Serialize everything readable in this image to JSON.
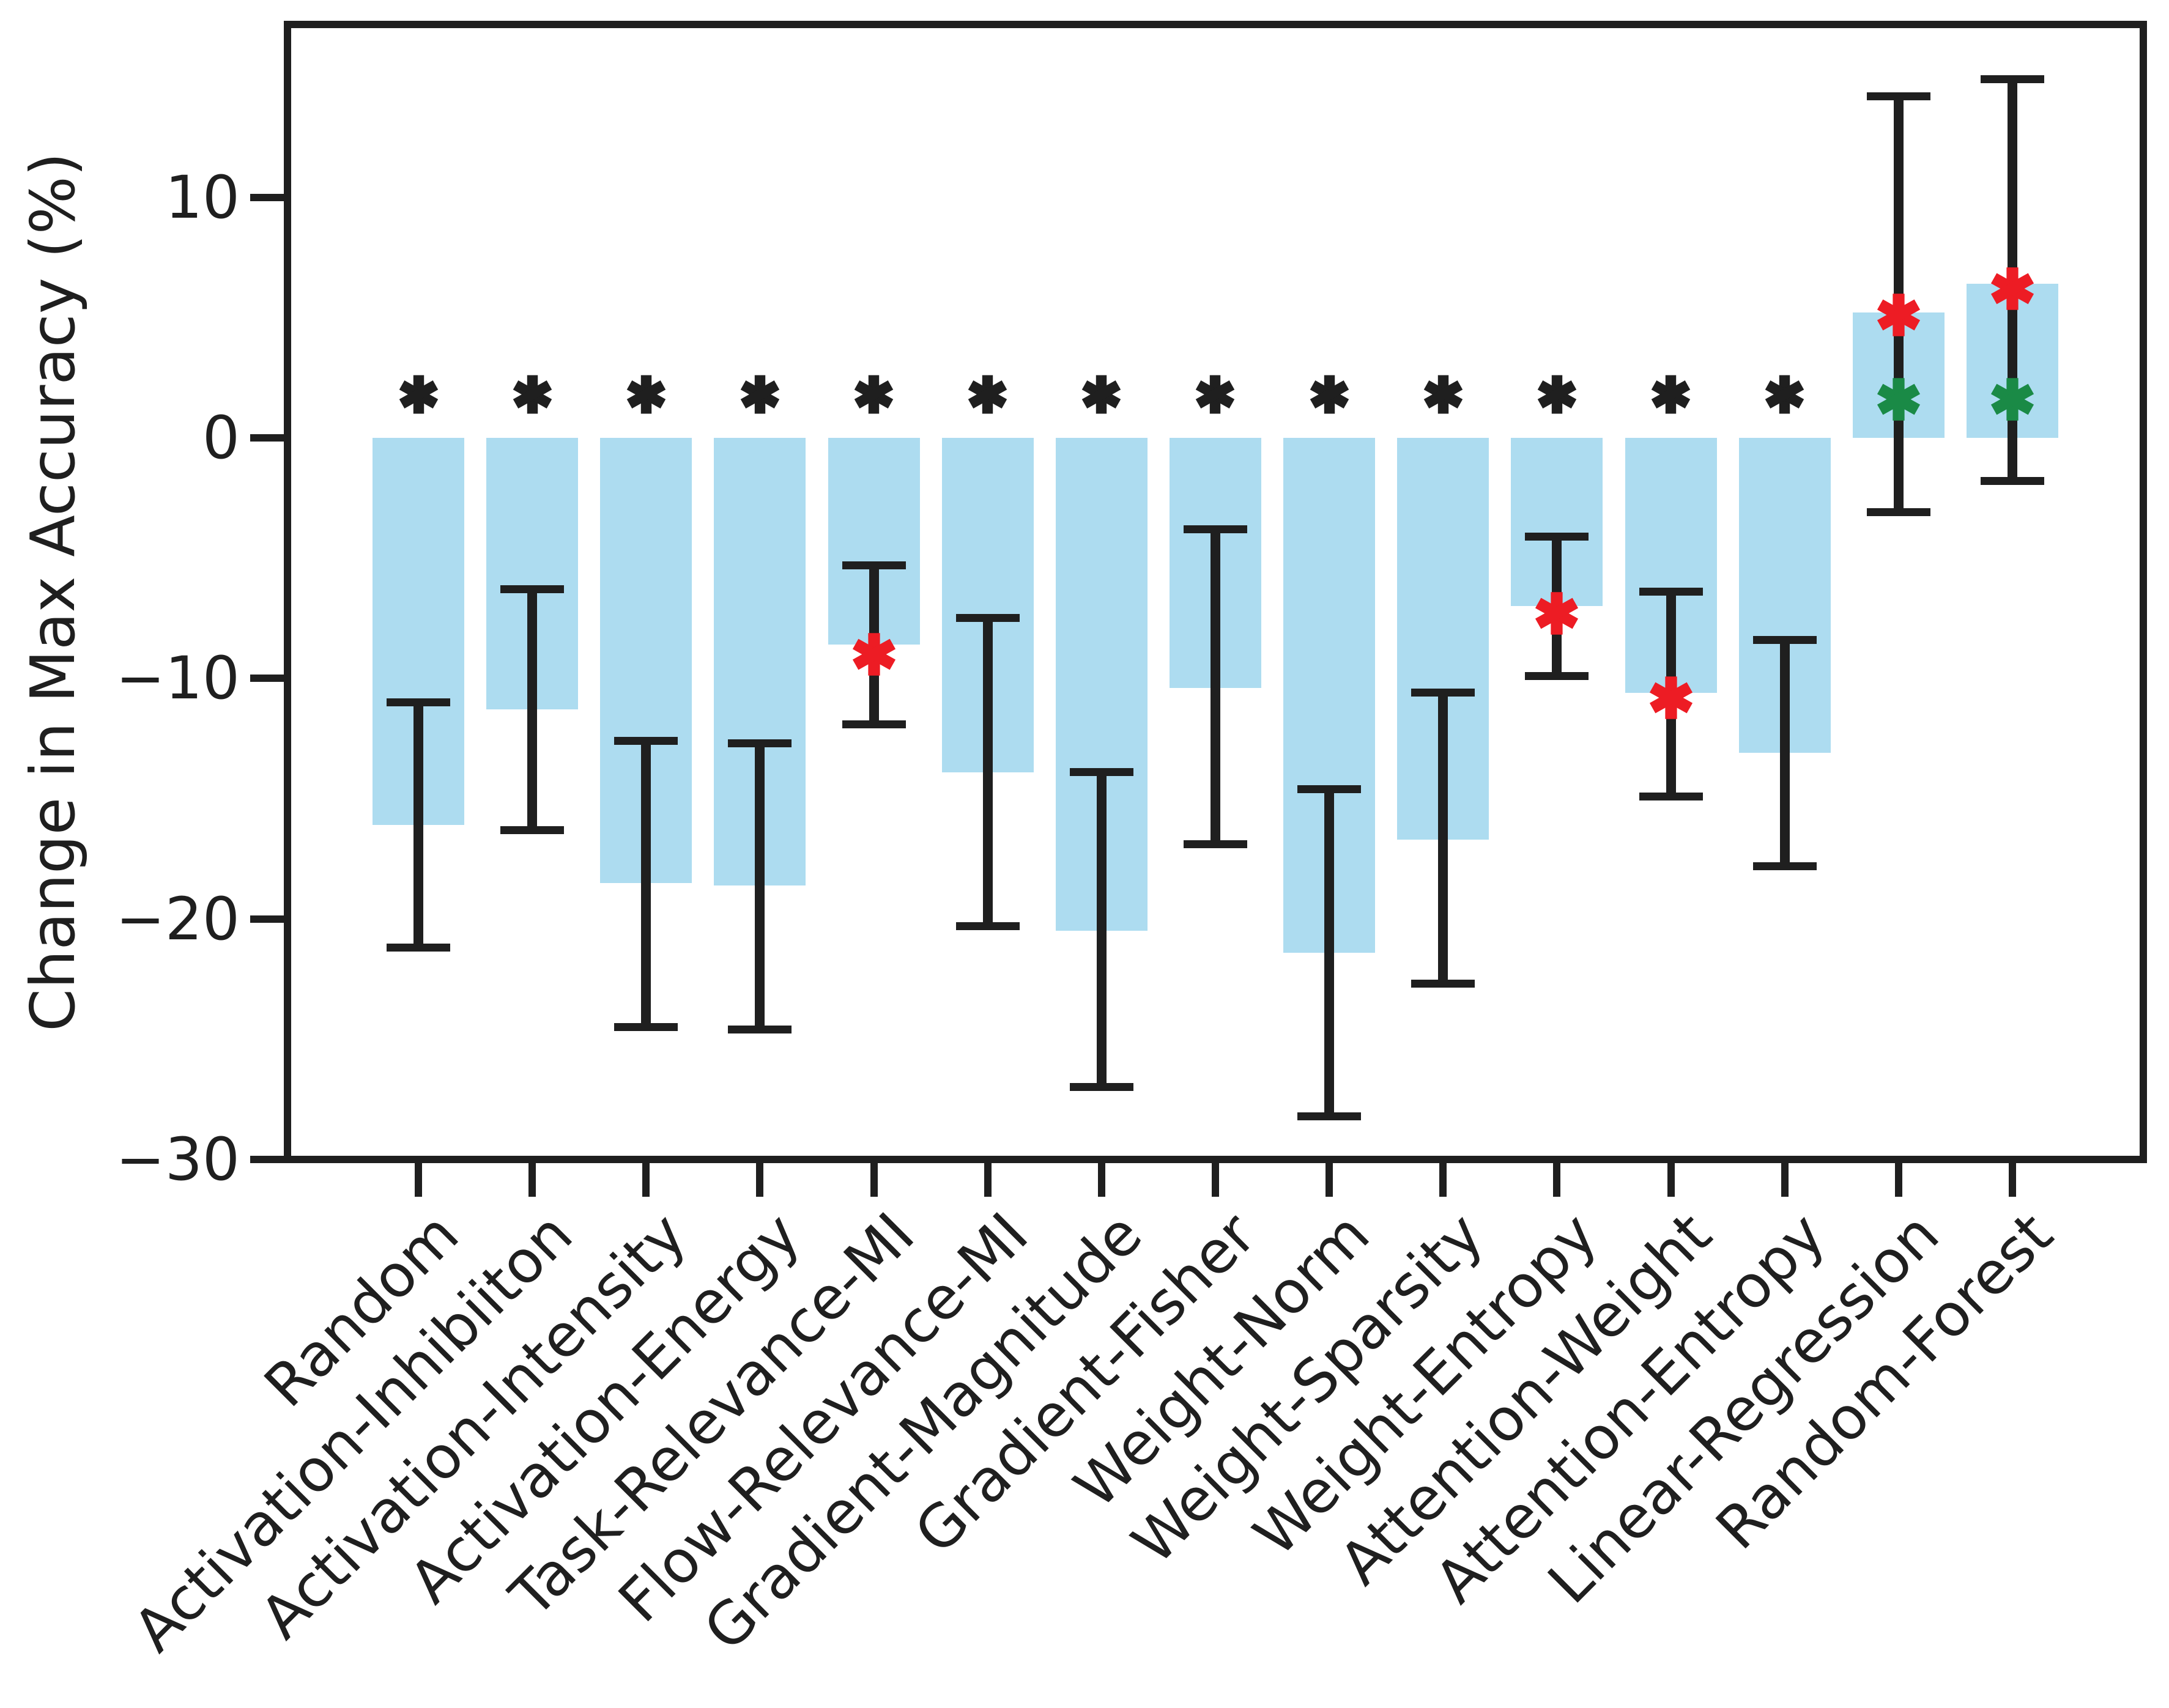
{
  "colors": {
    "background": "#ffffff",
    "bar_fill": "#ADDCF0",
    "axis_and_error": "#1f1f1f",
    "significance_black": "#1f1f1f",
    "significance_red": "#ED1C24",
    "significance_green": "#1A8A46",
    "text": "#1f1f1f"
  },
  "chart_data": {
    "type": "bar",
    "title": "",
    "xlabel": "",
    "ylabel": "Change in Max Accuracy (%)",
    "grid": false,
    "legend": null,
    "ylim": [
      -30,
      17.2
    ],
    "yticks": [
      10,
      0,
      -10,
      -20,
      -30
    ],
    "ytick_labels": [
      "10",
      "0",
      "−10",
      "−20",
      "−30"
    ],
    "categories": [
      "Random",
      "Activation-Inhibiiton",
      "Activation-Intensity",
      "Activation-Energy",
      "Task-Relevance-MI",
      "Flow-Relevance-MI",
      "Gradient-Magnitude",
      "Gradient-Fisher",
      "Weight-Norm",
      "Weight-Sparsity",
      "Weight-Entropy",
      "Attention-Weight",
      "Attention-Entropy",
      "Linear-Regression",
      "Random-Forest"
    ],
    "values": [
      -16.1,
      -11.3,
      -18.5,
      -18.6,
      -8.6,
      -13.9,
      -20.5,
      -10.4,
      -21.4,
      -16.7,
      -7.0,
      -10.6,
      -13.1,
      5.2,
      6.4
    ],
    "error_low": [
      -21.2,
      -16.3,
      -24.5,
      -24.6,
      -11.9,
      -20.3,
      -27.0,
      -16.9,
      -28.2,
      -22.7,
      -9.9,
      -14.9,
      -17.8,
      -3.1,
      -1.8
    ],
    "error_high": [
      -11.0,
      -6.3,
      -12.6,
      -12.7,
      -5.3,
      -7.5,
      -13.9,
      -3.8,
      -14.6,
      -10.6,
      -4.1,
      -6.4,
      -8.4,
      14.2,
      14.9
    ],
    "significance": {
      "marker": "*",
      "y": 1.8,
      "categories": [
        "Random",
        "Activation-Inhibiiton",
        "Activation-Intensity",
        "Activation-Energy",
        "Task-Relevance-MI",
        "Flow-Relevance-MI",
        "Gradient-Magnitude",
        "Gradient-Fisher",
        "Weight-Norm",
        "Weight-Sparsity",
        "Weight-Entropy",
        "Attention-Weight",
        "Attention-Entropy"
      ]
    },
    "red_asterisks": [
      {
        "category": "Task-Relevance-MI",
        "y": -9.0
      },
      {
        "category": "Weight-Entropy",
        "y": -7.3
      },
      {
        "category": "Attention-Weight",
        "y": -10.8
      },
      {
        "category": "Linear-Regression",
        "y": 5.1
      },
      {
        "category": "Random-Forest",
        "y": 6.2
      }
    ],
    "green_asterisks": [
      {
        "category": "Linear-Regression",
        "y": 1.6
      },
      {
        "category": "Random-Forest",
        "y": 1.6
      }
    ]
  }
}
